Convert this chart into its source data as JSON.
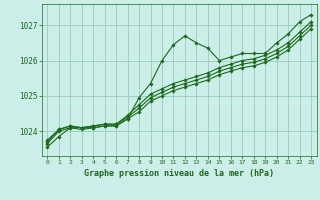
{
  "title": "Graphe pression niveau de la mer (hPa)",
  "bg_color": "#cceee8",
  "grid_color": "#99ccbb",
  "line_color": "#1a6b1a",
  "text_color": "#1a6b1a",
  "x_ticks": [
    0,
    1,
    2,
    3,
    4,
    5,
    6,
    7,
    8,
    9,
    10,
    11,
    12,
    13,
    14,
    15,
    16,
    17,
    18,
    19,
    20,
    21,
    22,
    23
  ],
  "y_ticks": [
    1024,
    1025,
    1026,
    1027
  ],
  "ylim": [
    1023.3,
    1027.6
  ],
  "xlim": [
    -0.5,
    23.5
  ],
  "series": [
    [
      1023.55,
      1023.85,
      1024.1,
      1024.1,
      1024.1,
      1024.15,
      1024.15,
      1024.35,
      1024.95,
      1025.35,
      1026.0,
      1026.45,
      1026.7,
      1026.5,
      1026.35,
      1026.0,
      1026.1,
      1026.2,
      1026.2,
      1026.2,
      1026.5,
      1026.75,
      1027.1,
      1027.3
    ],
    [
      1023.75,
      1024.05,
      1024.15,
      1024.1,
      1024.15,
      1024.2,
      1024.2,
      1024.45,
      1024.75,
      1025.05,
      1025.2,
      1025.35,
      1025.45,
      1025.55,
      1025.65,
      1025.8,
      1025.9,
      1026.0,
      1026.05,
      1026.15,
      1026.3,
      1026.5,
      1026.8,
      1027.1
    ],
    [
      1023.7,
      1024.05,
      1024.15,
      1024.1,
      1024.15,
      1024.2,
      1024.2,
      1024.4,
      1024.65,
      1024.95,
      1025.1,
      1025.25,
      1025.35,
      1025.45,
      1025.55,
      1025.7,
      1025.8,
      1025.9,
      1025.95,
      1026.05,
      1026.2,
      1026.4,
      1026.7,
      1027.0
    ],
    [
      1023.65,
      1024.0,
      1024.1,
      1024.05,
      1024.1,
      1024.15,
      1024.15,
      1024.35,
      1024.55,
      1024.85,
      1025.0,
      1025.15,
      1025.25,
      1025.35,
      1025.45,
      1025.6,
      1025.7,
      1025.8,
      1025.85,
      1025.95,
      1026.1,
      1026.3,
      1026.6,
      1026.9
    ]
  ]
}
